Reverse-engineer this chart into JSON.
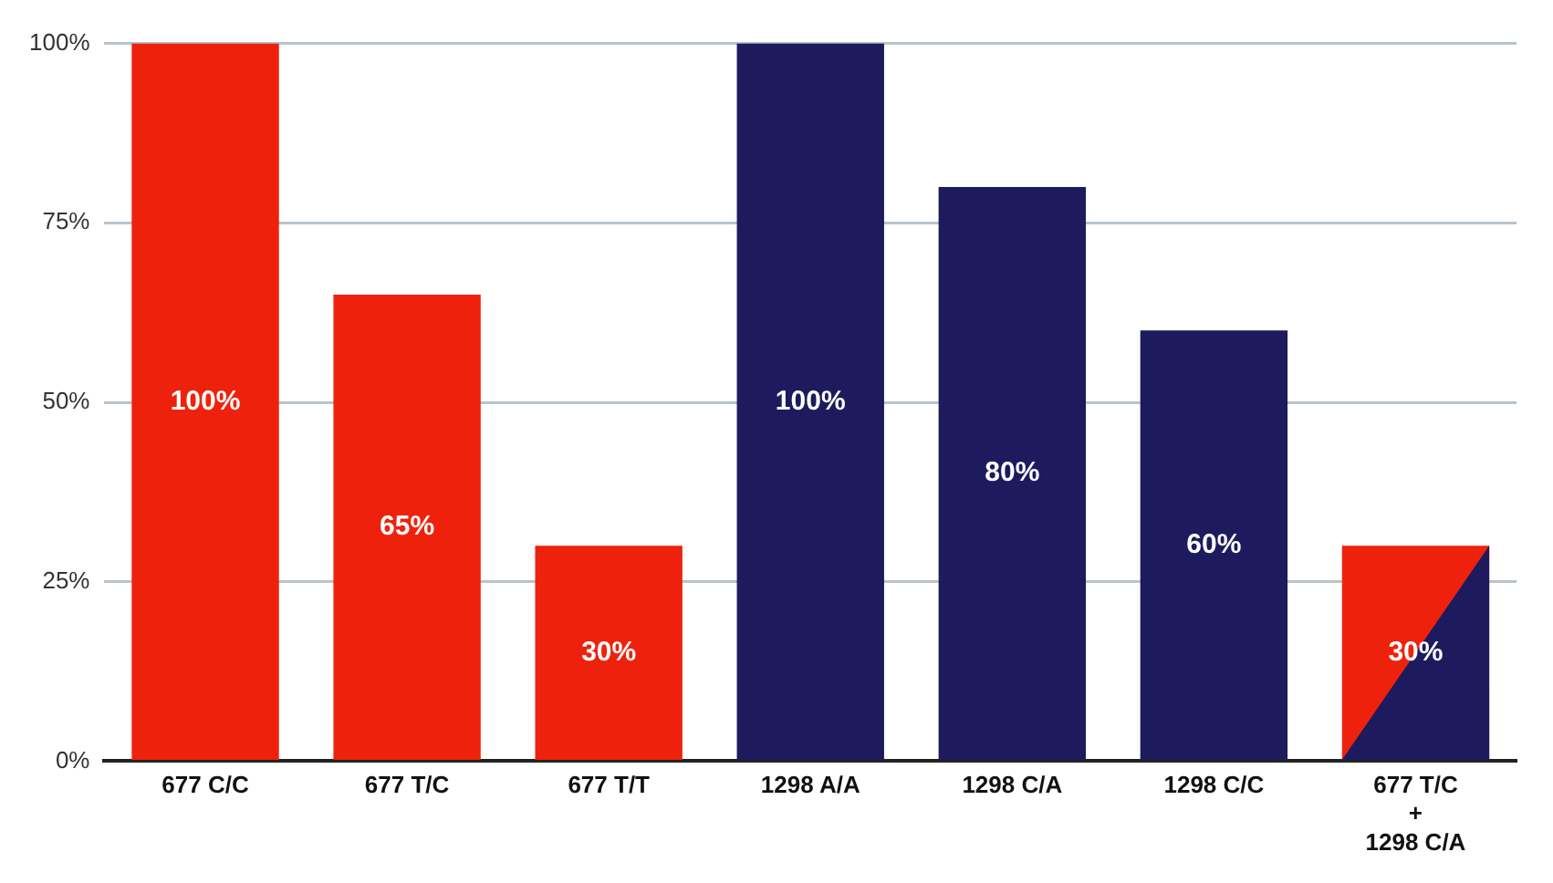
{
  "chart_data": {
    "type": "bar",
    "categories": [
      "677 C/C",
      "677 T/C",
      "677 T/T",
      "1298 A/A",
      "1298 C/A",
      "1298 C/C",
      "677 T/C\n+\n1298 C/A"
    ],
    "values": [
      100,
      65,
      30,
      100,
      80,
      60,
      30
    ],
    "colors": [
      "#ee220c",
      "#ee220c",
      "#ee220c",
      "#1d1a5e",
      "#1d1a5e",
      "#1d1a5e",
      "#ee220c"
    ],
    "value_labels": [
      "100%",
      "65%",
      "30%",
      "100%",
      "80%",
      "60%",
      "30%"
    ],
    "ylim": [
      0,
      100
    ],
    "yticks": [
      {
        "value": 0,
        "label": "0%"
      },
      {
        "value": 25,
        "label": "25%"
      },
      {
        "value": 50,
        "label": "50%"
      },
      {
        "value": 75,
        "label": "75%"
      },
      {
        "value": 100,
        "label": "100%"
      }
    ],
    "grid": "y",
    "legend": false
  }
}
